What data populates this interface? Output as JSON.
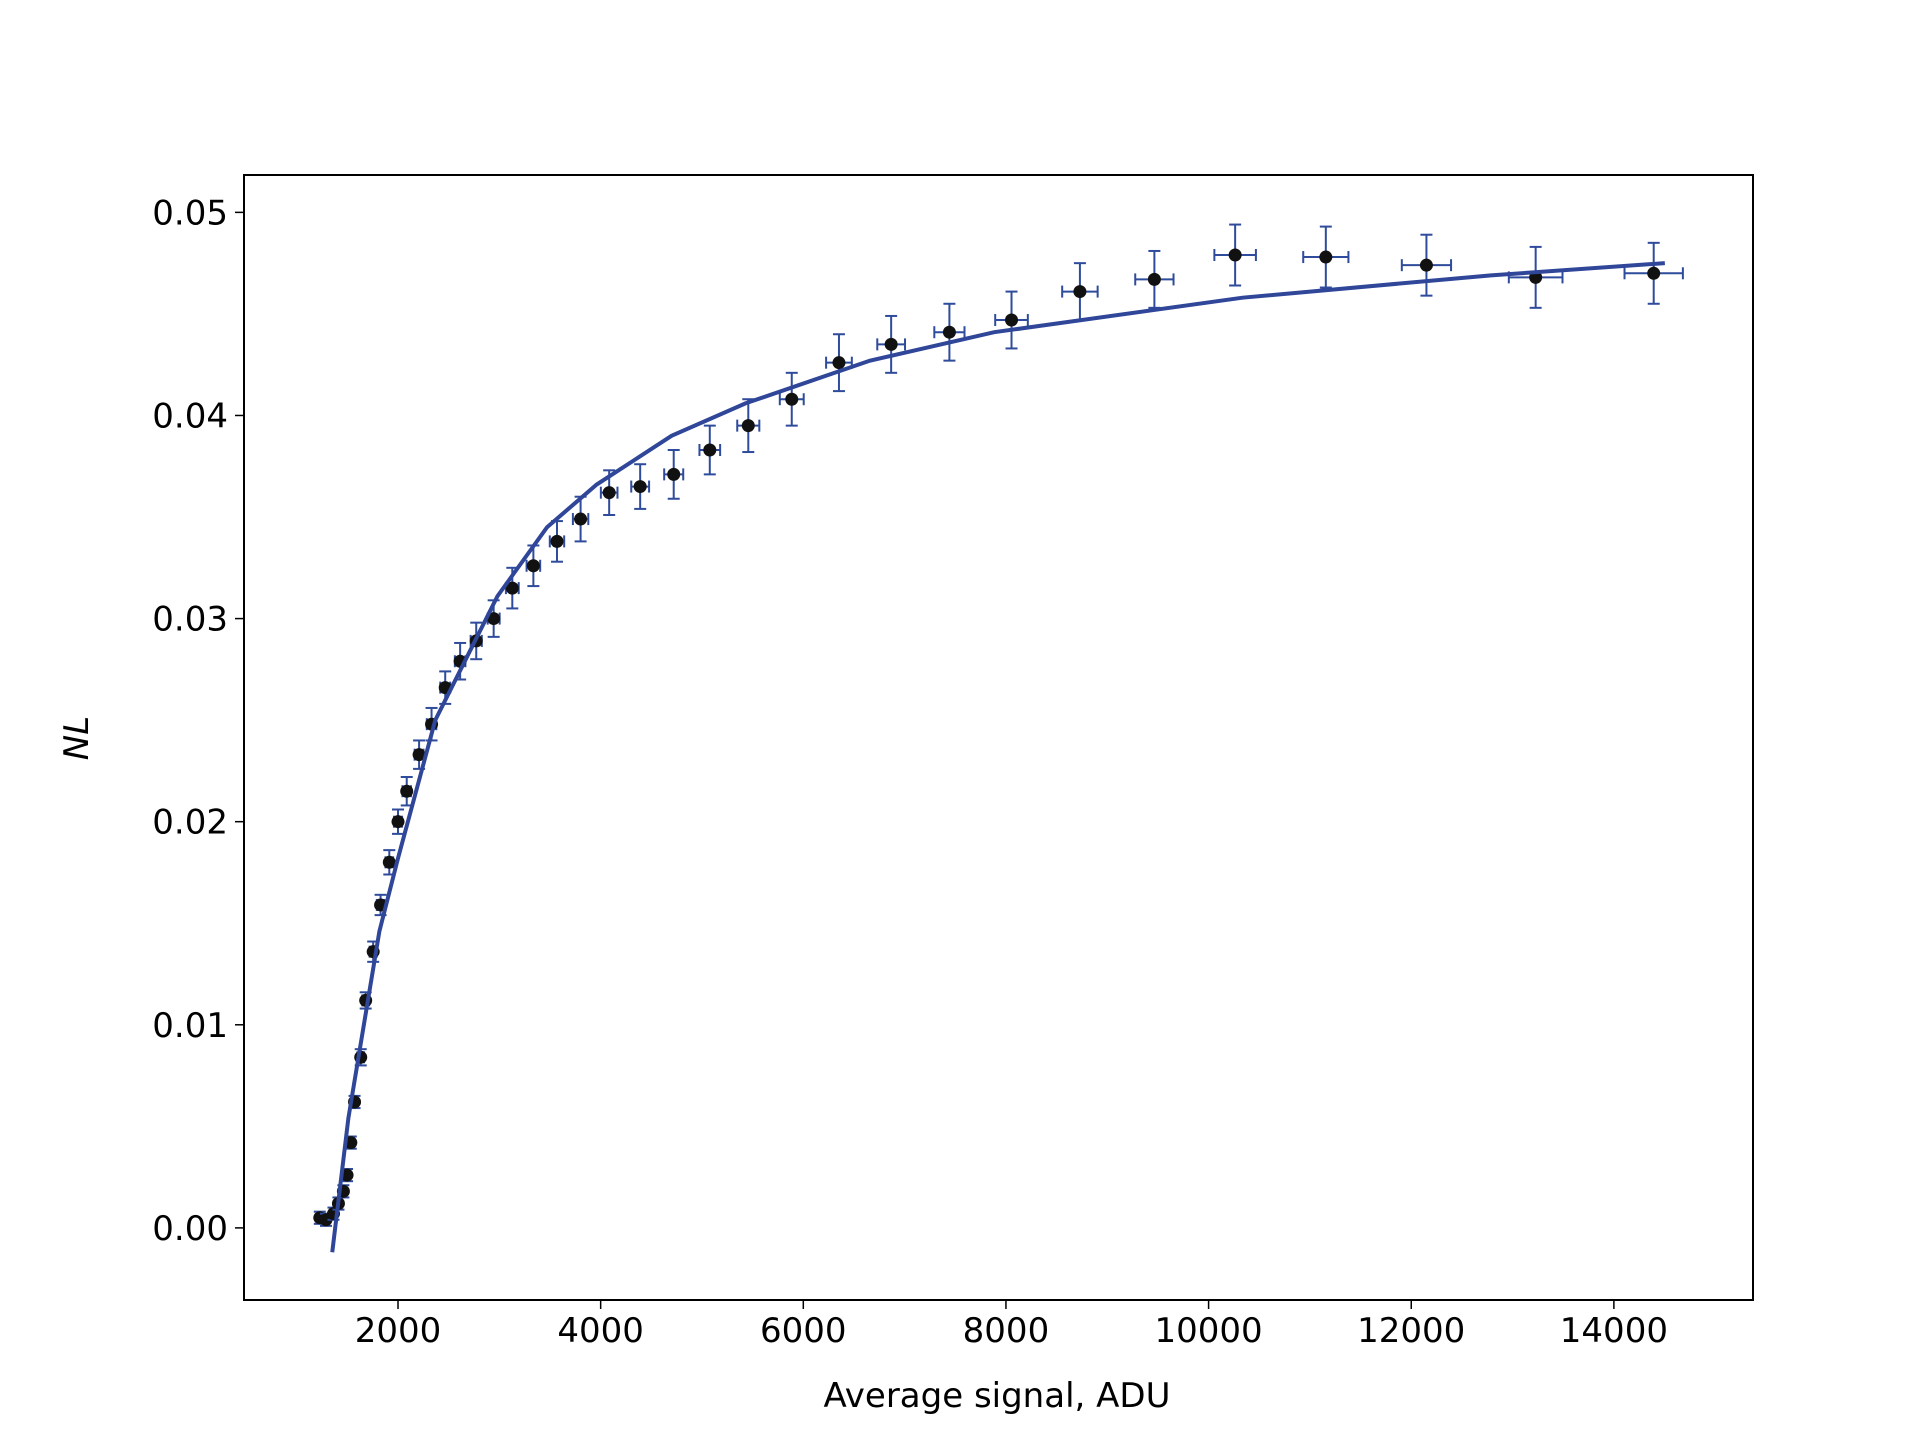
{
  "chart_data": {
    "type": "scatter",
    "xlabel": "Average signal, ADU",
    "ylabel": "NL",
    "xlim": [
      480,
      15373
    ],
    "ylim": [
      -0.00355,
      0.05184
    ],
    "xticks": [
      2000,
      4000,
      6000,
      8000,
      10000,
      12000,
      14000
    ],
    "yticks": [
      {
        "value": 0,
        "label": "0.00"
      },
      {
        "value": 0.01,
        "label": "0.01"
      },
      {
        "value": 0.02,
        "label": "0.02"
      },
      {
        "value": 0.03,
        "label": "0.03"
      },
      {
        "value": 0.04,
        "label": "0.04"
      },
      {
        "value": 0.05,
        "label": "0.05"
      }
    ],
    "series": [
      {
        "type": "errorbar",
        "color": "#2f4b9b",
        "marker_color": "#111111",
        "x": [
          1228,
          1289,
          1363,
          1412,
          1461,
          1497,
          1534,
          1571,
          1632,
          1681,
          1755,
          1828,
          1914,
          2000,
          2086,
          2208,
          2331,
          2466,
          2613,
          2772,
          2944,
          3128,
          3336,
          3569,
          3802,
          4084,
          4390,
          4721,
          5077,
          5457,
          5886,
          6352,
          6867,
          7442,
          8055,
          8730,
          9465,
          10262,
          11157,
          12150,
          13228,
          14393
        ],
        "values": [
          0.0005,
          0.0004,
          0.0007,
          0.0012,
          0.0018,
          0.0026,
          0.0042,
          0.0062,
          0.0084,
          0.0112,
          0.0136,
          0.0159,
          0.018,
          0.02,
          0.0215,
          0.0233,
          0.0248,
          0.0266,
          0.0279,
          0.0289,
          0.03,
          0.0315,
          0.0326,
          0.0338,
          0.0349,
          0.0362,
          0.0365,
          0.0371,
          0.0383,
          0.0395,
          0.0408,
          0.0426,
          0.0435,
          0.0441,
          0.0447,
          0.0461,
          0.0467,
          0.0479,
          0.0478,
          0.0474,
          0.0468,
          0.047
        ],
        "xerr": [
          25,
          26,
          27,
          28,
          29,
          30,
          31,
          31,
          33,
          34,
          35,
          37,
          38,
          40,
          42,
          44,
          47,
          49,
          52,
          55,
          59,
          63,
          67,
          71,
          76,
          82,
          88,
          94,
          102,
          109,
          118,
          127,
          137,
          149,
          161,
          175,
          189,
          205,
          223,
          243,
          265,
          288
        ],
        "yerr": [
          0.0003,
          0.0003,
          0.0003,
          0.0003,
          0.0003,
          0.0003,
          0.0003,
          0.0003,
          0.0004,
          0.0004,
          0.0005,
          0.0005,
          0.0006,
          0.0006,
          0.0007,
          0.0007,
          0.0008,
          0.0008,
          0.0009,
          0.0009,
          0.0009,
          0.001,
          0.001,
          0.001,
          0.0011,
          0.0011,
          0.0011,
          0.0012,
          0.0012,
          0.0013,
          0.0013,
          0.0014,
          0.0014,
          0.0014,
          0.0014,
          0.0014,
          0.0014,
          0.0015,
          0.0015,
          0.0015,
          0.0015,
          0.0015
        ]
      },
      {
        "type": "line",
        "color": "#2f4699",
        "x": [
          1351,
          1510,
          1816,
          2000,
          2368,
          2981,
          3471,
          3961,
          4700,
          5432,
          6658,
          7884,
          10335,
          12787,
          14503
        ],
        "values": [
          -0.0012,
          0.0054,
          0.0146,
          0.0182,
          0.025,
          0.0311,
          0.0345,
          0.0366,
          0.039,
          0.0406,
          0.0427,
          0.0441,
          0.0458,
          0.0469,
          0.0475
        ]
      }
    ]
  }
}
